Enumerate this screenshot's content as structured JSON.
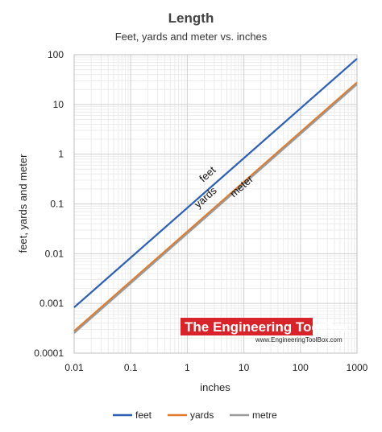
{
  "chart_data": {
    "type": "line",
    "title": "Length",
    "subtitle": "Feet, yards and meter vs. inches",
    "xlabel": "inches",
    "ylabel": "feet, yards and meter",
    "x_scale": "log",
    "y_scale": "log",
    "xlim": [
      0.01,
      1000
    ],
    "ylim": [
      0.0001,
      100
    ],
    "x_ticks": [
      "0.01",
      "0.1",
      "1",
      "10",
      "100",
      "1000"
    ],
    "y_ticks": [
      "100",
      "10",
      "1",
      "0.1",
      "0.01",
      "0.001",
      "0.0001"
    ],
    "grid": true,
    "legend_position": "bottom",
    "x": [
      0.01,
      1000
    ],
    "series": [
      {
        "name": "feet",
        "values": [
          0.000833,
          83.33
        ],
        "color": "#2e5fb0"
      },
      {
        "name": "yards",
        "values": [
          0.000278,
          27.78
        ],
        "color": "#e07b2c"
      },
      {
        "name": "metre",
        "values": [
          0.000254,
          25.4
        ],
        "color": "#9a9a9a"
      }
    ],
    "annotations": [
      {
        "text": "feet",
        "x": 2.5,
        "y": 0.35
      },
      {
        "text": "yards",
        "x": 2.3,
        "y": 0.12
      },
      {
        "text": "meter",
        "x": 10,
        "y": 0.2
      }
    ],
    "watermark": {
      "title": "The Engineering ToolBox",
      "url": "www.EngineeringToolBox.com",
      "color": "#d9232a"
    }
  }
}
